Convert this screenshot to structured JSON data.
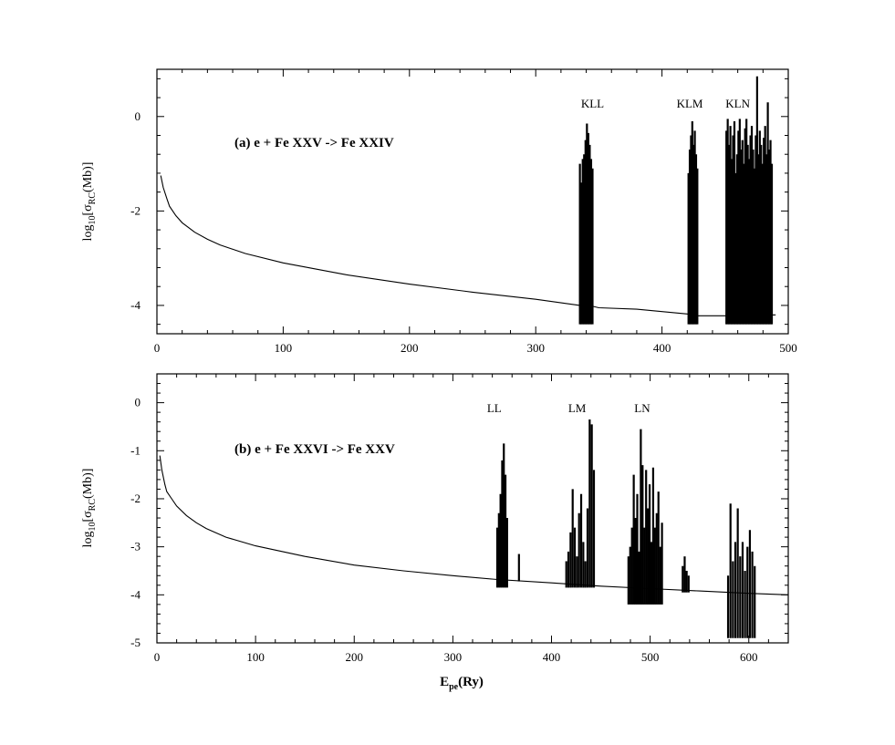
{
  "figure": {
    "xlabel_main": "E",
    "xlabel_sub": "pe",
    "xlabel_tail": "(Ry)"
  },
  "chart_data": [
    {
      "id": "a",
      "type": "line",
      "annotation": "(a) e + Fe XXV -> Fe XXIV",
      "ylabel": {
        "prefix": "log",
        "sub1": "10",
        "bracket_open": "[σ",
        "sub2": "RC",
        "tail": "(Mb)]"
      },
      "xlim": [
        0,
        500
      ],
      "ylim": [
        -4.6,
        1.0
      ],
      "xticks": [
        0,
        100,
        200,
        300,
        400,
        500
      ],
      "yticks": [
        -4,
        -2,
        0
      ],
      "series_color": "#000000",
      "background": {
        "x": [
          3,
          5,
          8,
          10,
          15,
          20,
          30,
          40,
          50,
          70,
          100,
          150,
          200,
          250,
          300,
          335,
          342,
          350,
          380,
          420,
          426,
          450,
          490
        ],
        "y": [
          -1.25,
          -1.5,
          -1.75,
          -1.9,
          -2.1,
          -2.25,
          -2.45,
          -2.6,
          -2.72,
          -2.9,
          -3.1,
          -3.35,
          -3.55,
          -3.72,
          -3.87,
          -4.0,
          -4.0,
          -4.05,
          -4.08,
          -4.18,
          -4.22,
          -4.22,
          -4.2
        ]
      },
      "resonance_groups": [
        {
          "label": "KLL",
          "label_x": 345,
          "x_range": [
            335,
            345
          ],
          "peaks": [
            -1.0,
            -1.4,
            -0.9,
            -0.8,
            -0.5,
            -0.15,
            -0.35,
            -0.6,
            -0.9,
            -1.1
          ],
          "floor": -4.4
        },
        {
          "label": "KLM",
          "label_x": 422,
          "x_range": [
            421,
            428
          ],
          "peaks": [
            -1.2,
            -0.7,
            -0.4,
            -0.1,
            -0.6,
            -0.3,
            -0.8,
            -1.1
          ],
          "floor": -4.4
        },
        {
          "label": "KLN",
          "label_x": 460,
          "x_range": [
            451,
            487
          ],
          "peaks": [
            -0.3,
            -0.05,
            -0.6,
            -0.2,
            -0.9,
            -0.4,
            -0.1,
            -1.2,
            -0.8,
            -0.3,
            -0.05,
            -0.7,
            -0.5,
            -1.0,
            -0.25,
            -0.05,
            -0.6,
            -0.9,
            -0.4,
            -0.2,
            -0.7,
            -1.1,
            -0.4,
            0.85,
            -0.8,
            -0.3,
            -0.6,
            -1.0,
            -0.45,
            -0.2,
            -0.8,
            0.3,
            -0.7,
            -0.5,
            -1.0
          ],
          "floor": -4.4
        }
      ]
    },
    {
      "id": "b",
      "type": "line",
      "annotation": "(b) e + Fe XXVI -> Fe XXV",
      "ylabel": {
        "prefix": "log",
        "sub1": "10",
        "bracket_open": "[σ",
        "sub2": "RC",
        "tail": "(Mb)]"
      },
      "xlim": [
        0,
        640
      ],
      "ylim": [
        -5,
        0.6
      ],
      "xticks": [
        0,
        100,
        200,
        300,
        400,
        500,
        600
      ],
      "yticks": [
        -5,
        -4,
        -3,
        -2,
        -1,
        0
      ],
      "series_color": "#000000",
      "background": {
        "x": [
          3,
          5,
          8,
          10,
          15,
          20,
          30,
          40,
          50,
          70,
          100,
          150,
          200,
          250,
          300,
          345,
          400,
          450,
          500,
          550,
          600,
          640
        ],
        "y": [
          -1.1,
          -1.4,
          -1.7,
          -1.85,
          -2.0,
          -2.15,
          -2.35,
          -2.5,
          -2.62,
          -2.8,
          -2.98,
          -3.2,
          -3.38,
          -3.5,
          -3.6,
          -3.68,
          -3.75,
          -3.82,
          -3.87,
          -3.92,
          -3.97,
          -4.0
        ]
      },
      "resonance_groups": [
        {
          "label": "LL",
          "label_x": 342,
          "x_range": [
            345,
            355
          ],
          "peaks": [
            -2.6,
            -2.3,
            -1.9,
            -1.2,
            -0.85,
            -1.5,
            -2.4
          ],
          "floor": -3.85
        },
        {
          "label": "",
          "label_x": 368,
          "x_range": [
            367,
            368
          ],
          "peaks": [
            -3.15
          ],
          "floor": -3.72
        },
        {
          "label": "LM",
          "label_x": 426,
          "x_range": [
            415,
            443
          ],
          "peaks": [
            -3.3,
            -3.1,
            -2.7,
            -1.8,
            -2.6,
            -3.2,
            -2.3,
            -1.9,
            -2.9,
            -3.3,
            -2.2,
            -0.35,
            -0.45,
            -1.4
          ],
          "floor": -3.85
        },
        {
          "label": "LN",
          "label_x": 492,
          "x_range": [
            478,
            512
          ],
          "peaks": [
            -3.2,
            -3.0,
            -2.6,
            -1.5,
            -2.4,
            -1.9,
            -3.1,
            -0.55,
            -1.3,
            -2.6,
            -1.4,
            -2.2,
            -1.7,
            -2.9,
            -1.35,
            -2.6,
            -2.3,
            -1.85,
            -3.0,
            -2.5
          ],
          "floor": -4.2
        },
        {
          "label": "",
          "label_x": 536,
          "x_range": [
            533,
            539
          ],
          "peaks": [
            -3.4,
            -3.2,
            -3.5,
            -3.6
          ],
          "floor": -3.95
        },
        {
          "label": "",
          "label_x": 595,
          "x_range": [
            579,
            606
          ],
          "peaks": [
            -3.6,
            -2.1,
            -3.3,
            -2.9,
            -2.2,
            -3.2,
            -2.9,
            -3.5,
            -3.0,
            -2.65,
            -3.1,
            -3.4
          ],
          "floor": -4.9
        }
      ]
    }
  ]
}
